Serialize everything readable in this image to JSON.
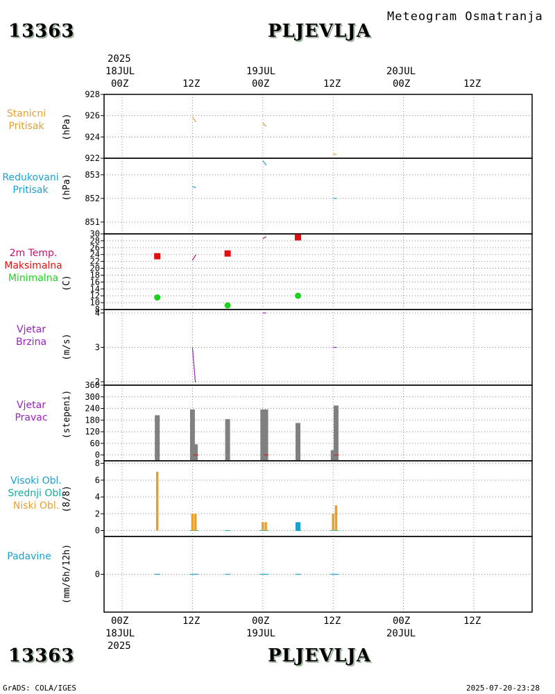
{
  "header": {
    "station_id": "13363",
    "station_name": "PLJEVLJA",
    "subtitle": "Meteogram Osmatranja",
    "footer_left": "GrADS: COLA/IGES",
    "footer_right": "2025-07-20-23:28"
  },
  "time_axis": {
    "year": "2025",
    "labels": [
      "00Z",
      "12Z",
      "00Z",
      "12Z",
      "00Z",
      "12Z"
    ],
    "dates": [
      "18JUL",
      "19JUL",
      "20JUL"
    ]
  },
  "colors": {
    "orange": "#e5a030",
    "cyan": "#1aa0d0",
    "magenta": "#c8106a",
    "red": "#e01010",
    "green": "#20d020",
    "purple": "#9a20c0",
    "gray": "#808080",
    "teal": "#10b0a0",
    "blue": "#20a0e0"
  },
  "chart_data": [
    {
      "id": "stanicni",
      "type": "line",
      "title_lines": [
        "Stanicni",
        "Pritisak"
      ],
      "ylabel": "(hPa)",
      "ylim": [
        922,
        928
      ],
      "yticks": [
        922,
        924,
        926,
        928
      ],
      "segments": [
        {
          "x": [
            12.0,
            12.6
          ],
          "y": [
            925.9,
            925.4
          ]
        },
        {
          "x": [
            24.0,
            24.6
          ],
          "y": [
            925.3,
            925.0
          ]
        },
        {
          "x": [
            36.0,
            36.6
          ],
          "y": [
            922.4,
            922.35
          ]
        }
      ]
    },
    {
      "id": "redukovani",
      "type": "line",
      "title_lines": [
        "Redukovani",
        "Pritisak"
      ],
      "ylabel": "(hPa)",
      "ylim": [
        850.5,
        853.7
      ],
      "yticks": [
        851,
        852,
        853
      ],
      "segments": [
        {
          "x": [
            12.0,
            12.6
          ],
          "y": [
            852.5,
            852.45
          ]
        },
        {
          "x": [
            24.0,
            24.6
          ],
          "y": [
            853.6,
            853.4
          ]
        },
        {
          "x": [
            36.0,
            36.6
          ],
          "y": [
            852.0,
            852.0
          ]
        }
      ]
    },
    {
      "id": "temperatura",
      "type": "line+scatter",
      "title_lines": [
        "2m Temp.",
        "Maksimalna",
        "Minimalna"
      ],
      "ylabel": "(C)",
      "ylim": [
        8,
        30
      ],
      "yticks": [
        8,
        10,
        12,
        14,
        16,
        18,
        20,
        22,
        24,
        26,
        28,
        30
      ],
      "temp_segments": [
        {
          "x": [
            12.0,
            12.6
          ],
          "y": [
            22.3,
            24.0
          ]
        },
        {
          "x": [
            24.0,
            24.6
          ],
          "y": [
            28.6,
            29.2
          ]
        }
      ],
      "maximum": {
        "x": [
          6,
          18,
          30
        ],
        "y": [
          23.5,
          24.3,
          29.0
        ]
      },
      "minimum": {
        "x": [
          6,
          18,
          30
        ],
        "y": [
          11.5,
          9.2,
          12.0
        ]
      }
    },
    {
      "id": "brzina",
      "type": "line",
      "title_lines": [
        "Vjetar",
        "Brzina"
      ],
      "ylabel": "(m/s)",
      "ylim": [
        1.9,
        4.1
      ],
      "yticks": [
        2,
        3,
        4
      ],
      "segments": [
        {
          "x": [
            12.0,
            12.5
          ],
          "y": [
            3.0,
            1.98
          ]
        },
        {
          "x": [
            24.0,
            24.6
          ],
          "y": [
            4.0,
            4.0
          ]
        },
        {
          "x": [
            36.0,
            36.6
          ],
          "y": [
            3.0,
            3.0
          ]
        }
      ]
    },
    {
      "id": "pravac",
      "type": "bar",
      "title_lines": [
        "Vjetar",
        "Pravac"
      ],
      "ylabel": "(stepeni)",
      "ylim": [
        -30,
        360
      ],
      "yticks": [
        0,
        60,
        120,
        180,
        240,
        300,
        360
      ],
      "bars": [
        {
          "x": 6.0,
          "value": 205
        },
        {
          "x": 12.0,
          "value": 235
        },
        {
          "x": 12.5,
          "value": 55
        },
        {
          "x": 18.0,
          "value": 185
        },
        {
          "x": 24.0,
          "value": 235
        },
        {
          "x": 24.5,
          "value": 235
        },
        {
          "x": 30.0,
          "value": 165
        },
        {
          "x": 36.0,
          "value": 25
        },
        {
          "x": 36.5,
          "value": 255
        }
      ],
      "zero_marks_x": [
        12.5,
        24.5,
        36.5
      ]
    },
    {
      "id": "oblaci",
      "type": "bar",
      "title_lines": [
        "Visoki Obl.",
        "Srednji Obl.",
        "Niski Obl."
      ],
      "ylabel": "(8/8)",
      "ylim": [
        -0.7,
        8.3
      ],
      "yticks": [
        0,
        2,
        4,
        6,
        8
      ],
      "series": [
        {
          "name": "Visoki Obl.",
          "color": "#1aa0d0",
          "bars": [
            {
              "x": 30.0,
              "value": 1
            }
          ]
        },
        {
          "name": "Niski Obl.",
          "color": "#e5a030",
          "bars": [
            {
              "x": 6.0,
              "value": 7
            },
            {
              "x": 12.0,
              "value": 2
            },
            {
              "x": 12.5,
              "value": 2
            },
            {
              "x": 24.0,
              "value": 1
            },
            {
              "x": 24.5,
              "value": 1
            },
            {
              "x": 36.0,
              "value": 2
            },
            {
              "x": 36.5,
              "value": 3
            }
          ]
        }
      ],
      "zero_marks_x": [
        12.0,
        12.5,
        18.0,
        24.0,
        24.5,
        30.0,
        36.0,
        36.5
      ]
    },
    {
      "id": "padavine",
      "type": "bar",
      "title_lines": [
        "Padavine"
      ],
      "ylabel": "(mm/6h/12h)",
      "ylim": [
        -5,
        5
      ],
      "yticks": [
        0
      ],
      "zero_marks_x": [
        6.0,
        12.0,
        12.5,
        18.0,
        24.0,
        24.5,
        30.0,
        36.0,
        36.5
      ]
    }
  ]
}
